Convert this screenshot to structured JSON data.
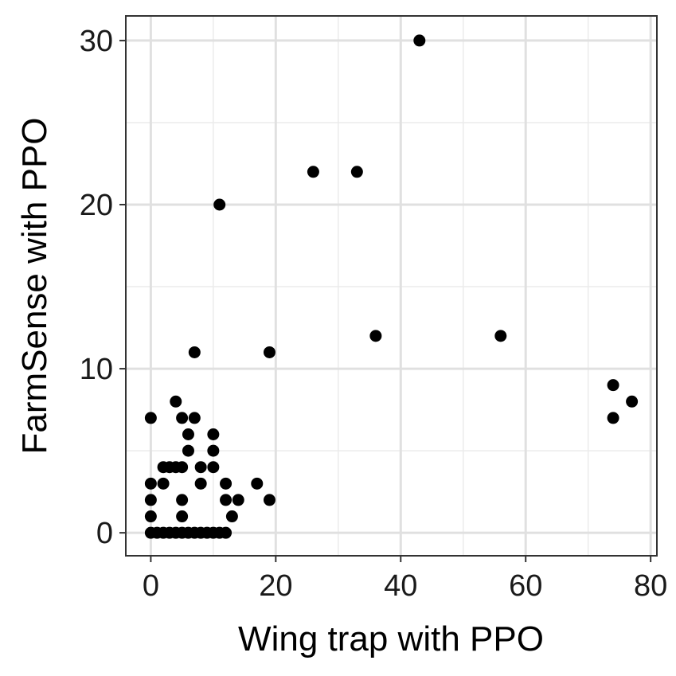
{
  "chart_data": {
    "type": "scatter",
    "title": "",
    "xlabel": "Wing trap with PPO",
    "ylabel": "FarmSense with PPO",
    "xlim": [
      -4,
      81
    ],
    "ylim": [
      -1.4,
      31.5
    ],
    "x_ticks": [
      0,
      20,
      40,
      60,
      80
    ],
    "y_ticks": [
      0,
      10,
      20,
      30
    ],
    "x_tick_labels": [
      "0",
      "20",
      "40",
      "60",
      "80"
    ],
    "y_tick_labels": [
      "0",
      "10",
      "20",
      "30"
    ],
    "grid": true,
    "legend": "none",
    "series": [
      {
        "color": "#000000",
        "points": [
          [
            43,
            30
          ],
          [
            26,
            22
          ],
          [
            33,
            22
          ],
          [
            11,
            20
          ],
          [
            36,
            12
          ],
          [
            56,
            12
          ],
          [
            7,
            11
          ],
          [
            19,
            11
          ],
          [
            74,
            9
          ],
          [
            77,
            8
          ],
          [
            74,
            7
          ],
          [
            0,
            7
          ],
          [
            4,
            8
          ],
          [
            5,
            7
          ],
          [
            7,
            7
          ],
          [
            6,
            6
          ],
          [
            10,
            6
          ],
          [
            6,
            5
          ],
          [
            10,
            5
          ],
          [
            2,
            4
          ],
          [
            3,
            4
          ],
          [
            4,
            4
          ],
          [
            5,
            4
          ],
          [
            8,
            4
          ],
          [
            10,
            4
          ],
          [
            0,
            3
          ],
          [
            2,
            3
          ],
          [
            8,
            3
          ],
          [
            12,
            3
          ],
          [
            17,
            3
          ],
          [
            0,
            2
          ],
          [
            5,
            2
          ],
          [
            12,
            2
          ],
          [
            14,
            2
          ],
          [
            19,
            2
          ],
          [
            0,
            1
          ],
          [
            5,
            1
          ],
          [
            13,
            1
          ],
          [
            0,
            0
          ],
          [
            1,
            0
          ],
          [
            2,
            0
          ],
          [
            3,
            0
          ],
          [
            4,
            0
          ],
          [
            5,
            0
          ],
          [
            6,
            0
          ],
          [
            7,
            0
          ],
          [
            8,
            0
          ],
          [
            9,
            0
          ],
          [
            10,
            0
          ],
          [
            11,
            0
          ],
          [
            12,
            0
          ]
        ]
      }
    ]
  }
}
